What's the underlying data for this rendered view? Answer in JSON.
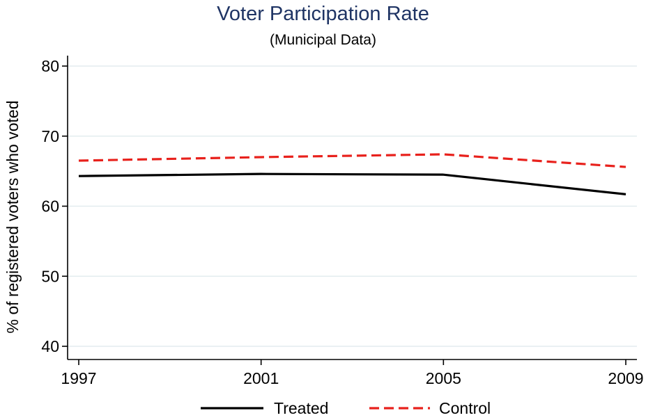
{
  "chart_data": {
    "type": "line",
    "title": "Voter Participation Rate",
    "subtitle": "(Municipal Data)",
    "xlabel": "",
    "ylabel": "% of registered voters who voted",
    "x": [
      1997,
      2001,
      2005,
      2009
    ],
    "x_tick_labels": [
      "1997",
      "2001",
      "2005",
      "2009"
    ],
    "y_ticks": [
      40,
      50,
      60,
      70,
      80
    ],
    "y_tick_labels": [
      "40",
      "50",
      "60",
      "70",
      "80"
    ],
    "ylim": [
      39,
      81.5
    ],
    "xlim": [
      1997,
      2009
    ],
    "grid": "horizontal",
    "legend_position": "bottom",
    "series": [
      {
        "name": "Treated",
        "values": [
          64.3,
          64.6,
          64.5,
          61.7
        ],
        "color": "#000000",
        "style": "solid"
      },
      {
        "name": "Control",
        "values": [
          66.5,
          67.0,
          67.4,
          65.6
        ],
        "color": "#e8211c",
        "style": "dashed"
      }
    ]
  }
}
